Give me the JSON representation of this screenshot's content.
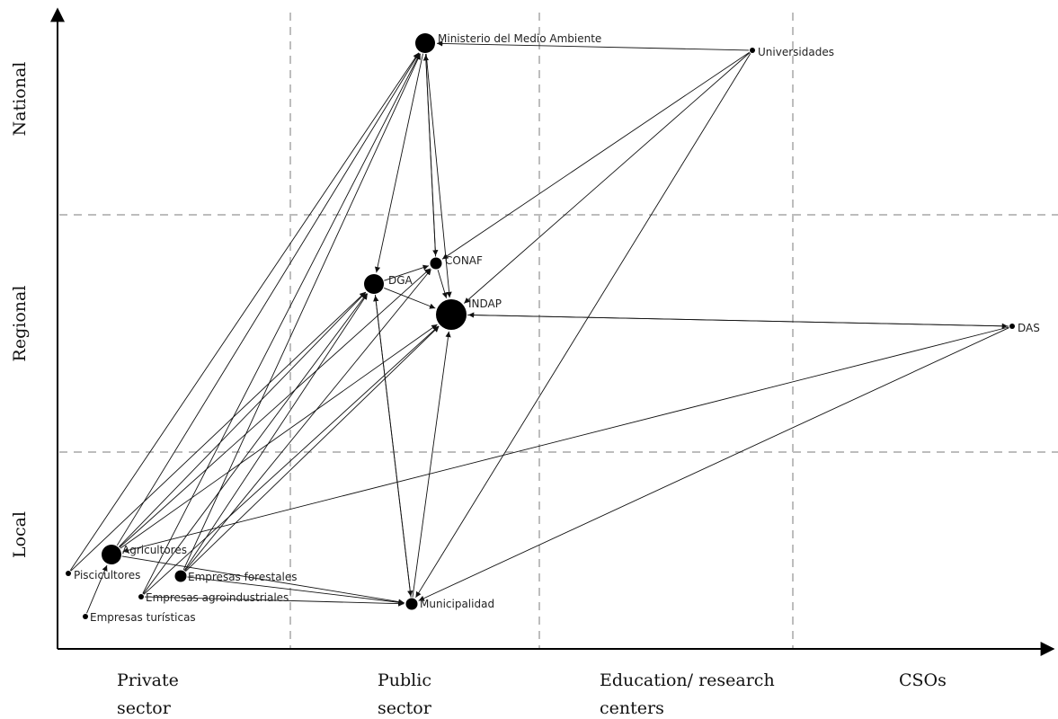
{
  "columns": [
    {
      "id": "private",
      "line1": "Private",
      "line2": "sector"
    },
    {
      "id": "public",
      "line1": "Public",
      "line2": "sector"
    },
    {
      "id": "education",
      "line1": "Education/ research",
      "line2": "centers"
    },
    {
      "id": "csos",
      "line1": "CSOs",
      "line2": ""
    }
  ],
  "rows": [
    {
      "id": "national",
      "label": "National"
    },
    {
      "id": "regional",
      "label": "Regional"
    },
    {
      "id": "local",
      "label": "Local"
    }
  ],
  "nodes": [
    {
      "id": "ministerio",
      "label": "Ministerio del Medio Ambiente",
      "size": "large"
    },
    {
      "id": "universidades",
      "label": "Universidades",
      "size": "small"
    },
    {
      "id": "dga",
      "label": "DGA",
      "size": "large"
    },
    {
      "id": "conaf",
      "label": "CONAF",
      "size": "medium"
    },
    {
      "id": "indap",
      "label": "INDAP",
      "size": "xlarge"
    },
    {
      "id": "das",
      "label": "DAS",
      "size": "small"
    },
    {
      "id": "agricultores",
      "label": "Agricultores",
      "size": "large"
    },
    {
      "id": "piscicultores",
      "label": "Piscicultores",
      "size": "small"
    },
    {
      "id": "forestales",
      "label": "Empresas forestales",
      "size": "medium"
    },
    {
      "id": "agroindustriales",
      "label": "Empresas agroindustriales",
      "size": "small"
    },
    {
      "id": "turisticas",
      "label": "Empresas turísticas",
      "size": "small"
    },
    {
      "id": "municipalidad",
      "label": "Municipalidad",
      "size": "medium"
    }
  ],
  "edges": [
    [
      "universidades",
      "ministerio"
    ],
    [
      "universidades",
      "conaf"
    ],
    [
      "universidades",
      "indap"
    ],
    [
      "universidades",
      "municipalidad"
    ],
    [
      "ministerio",
      "dga"
    ],
    [
      "ministerio",
      "conaf"
    ],
    [
      "ministerio",
      "indap"
    ],
    [
      "conaf",
      "ministerio"
    ],
    [
      "dga",
      "conaf"
    ],
    [
      "dga",
      "indap"
    ],
    [
      "conaf",
      "indap"
    ],
    [
      "dga",
      "municipalidad"
    ],
    [
      "municipalidad",
      "dga"
    ],
    [
      "municipalidad",
      "indap"
    ],
    [
      "das",
      "indap"
    ],
    [
      "indap",
      "das"
    ],
    [
      "das",
      "municipalidad"
    ],
    [
      "das",
      "agricultores"
    ],
    [
      "piscicultores",
      "ministerio"
    ],
    [
      "agricultores",
      "ministerio"
    ],
    [
      "agricultores",
      "dga"
    ],
    [
      "agricultores",
      "conaf"
    ],
    [
      "agricultores",
      "indap"
    ],
    [
      "forestales",
      "ministerio"
    ],
    [
      "forestales",
      "dga"
    ],
    [
      "forestales",
      "conaf"
    ],
    [
      "forestales",
      "indap"
    ],
    [
      "agroindustriales",
      "ministerio"
    ],
    [
      "agroindustriales",
      "dga"
    ],
    [
      "agroindustriales",
      "indap"
    ],
    [
      "forestales",
      "municipalidad"
    ],
    [
      "agroindustriales",
      "municipalidad"
    ],
    [
      "agricultores",
      "municipalidad"
    ],
    [
      "turisticas",
      "agricultores"
    ],
    [
      "piscicultores",
      "dga"
    ]
  ]
}
